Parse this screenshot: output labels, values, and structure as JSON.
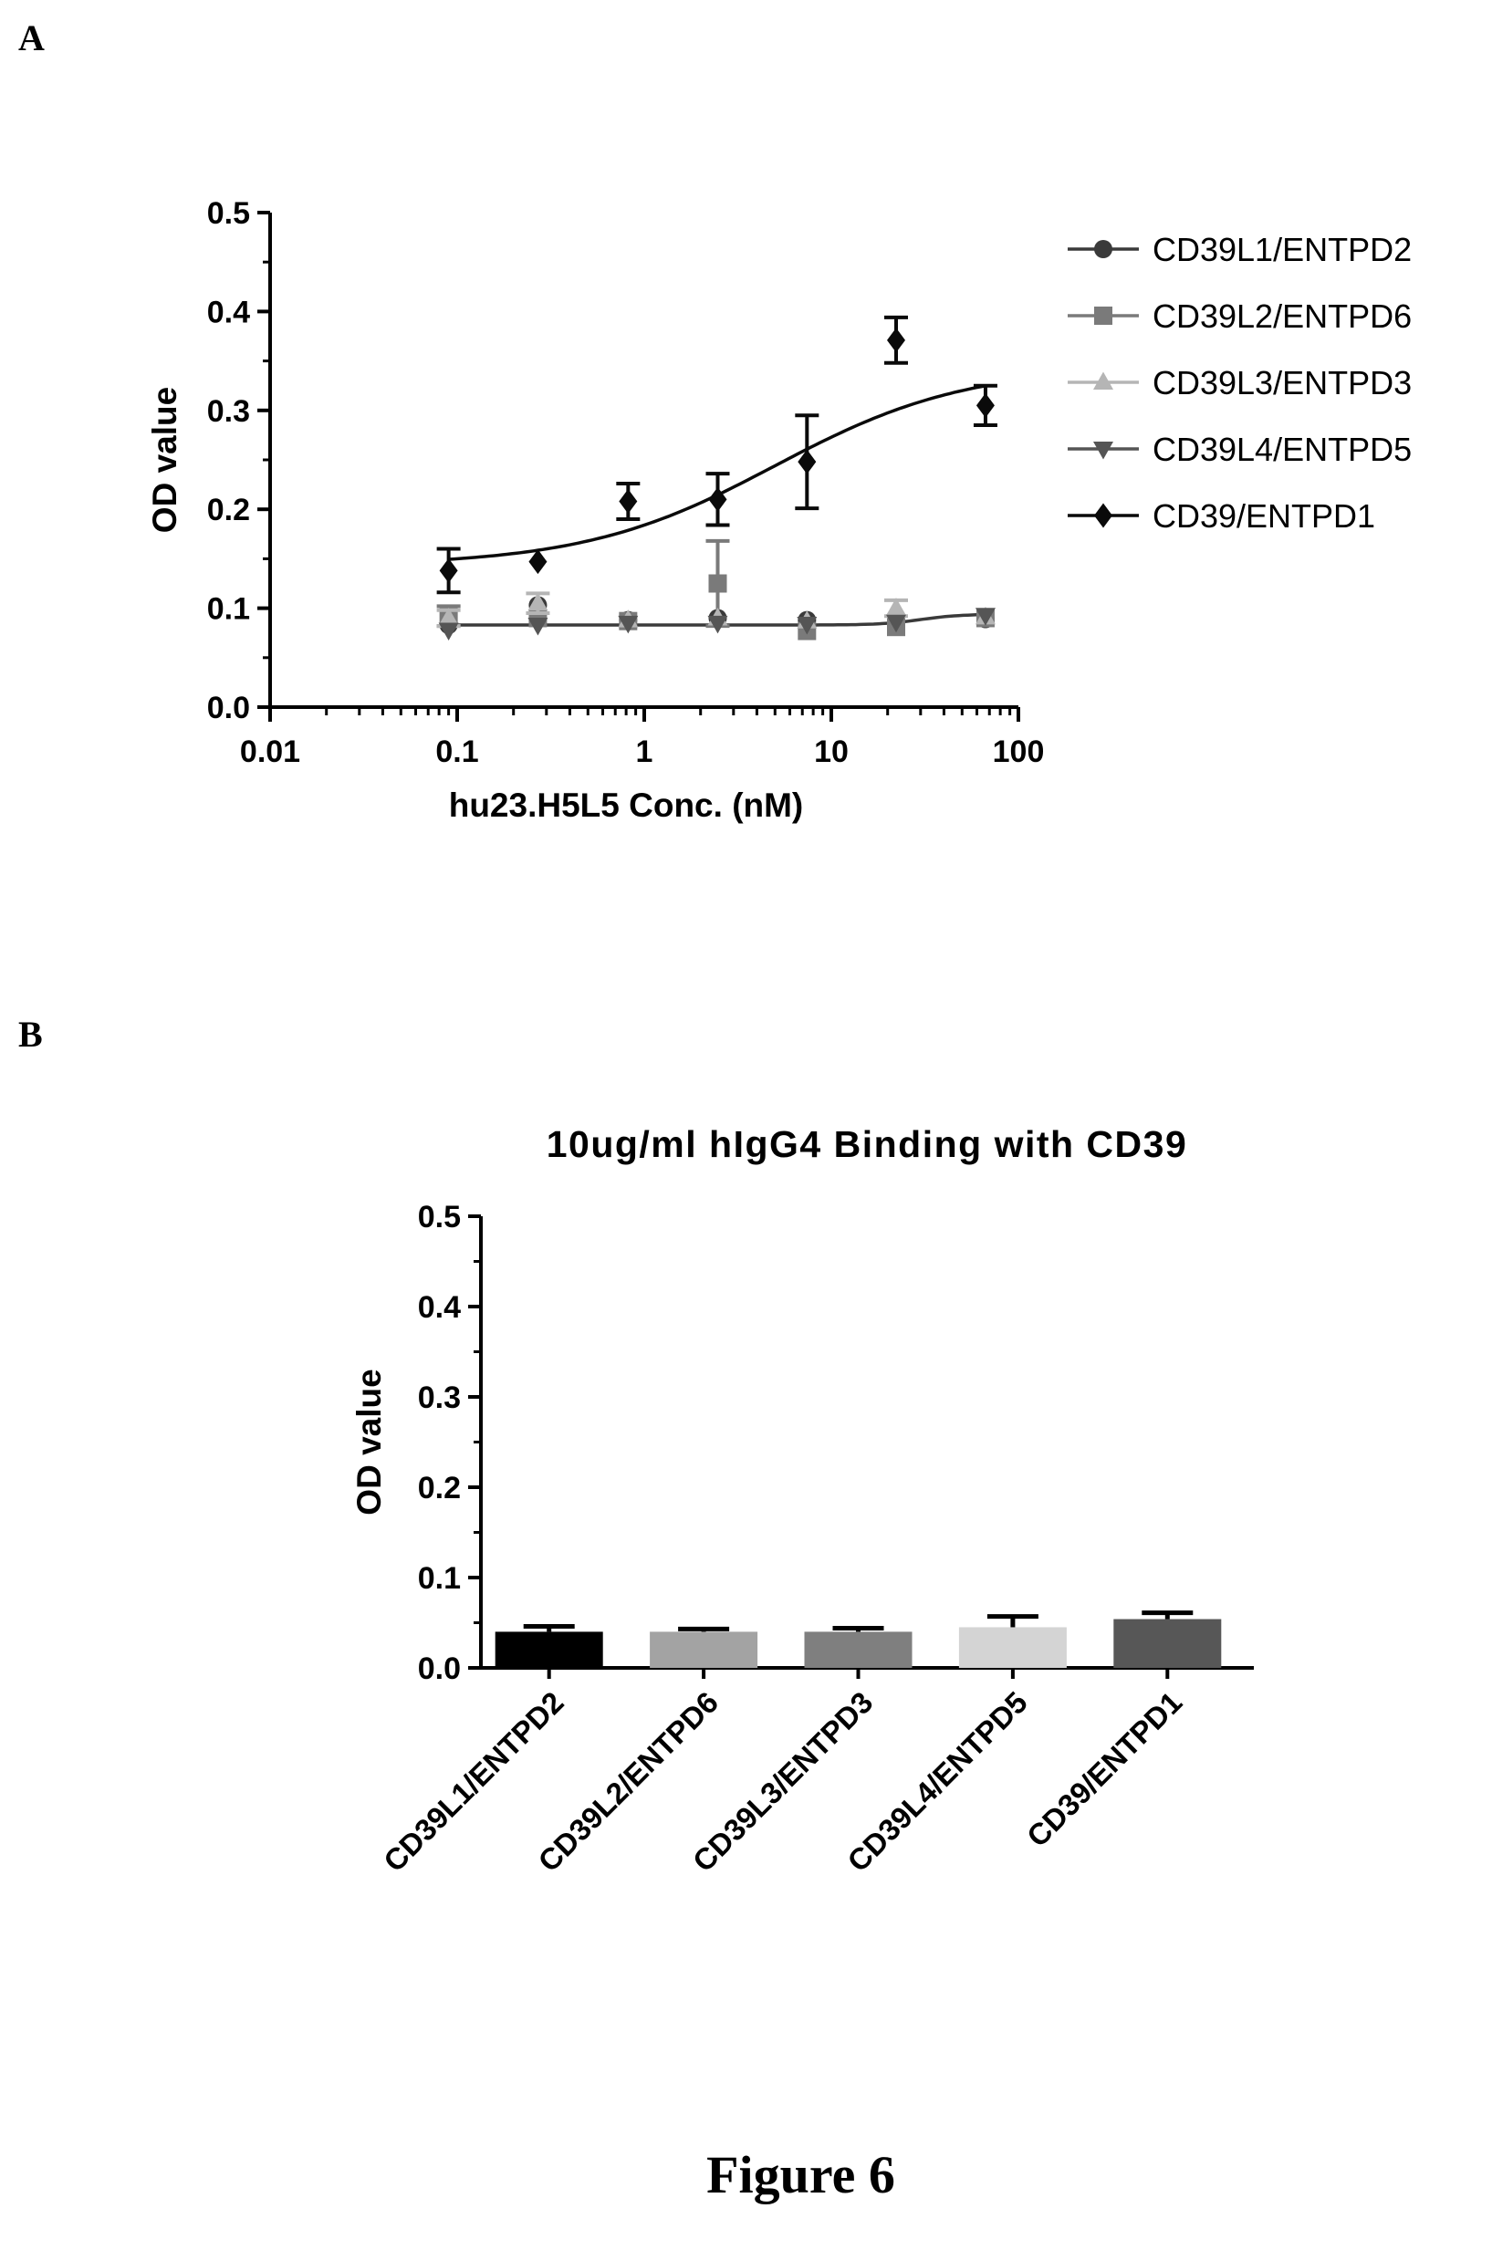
{
  "panels": {
    "a": "A",
    "b": "B"
  },
  "figure_caption": "Figure 6",
  "chart_data": [
    {
      "type": "scatter",
      "panel": "A",
      "xlabel": "hu23.H5L5 Conc. (nM)",
      "ylabel": "OD value",
      "xscale": "log",
      "xlim": [
        0.01,
        100
      ],
      "ylim": [
        0,
        0.5
      ],
      "xticks": [
        "0.01",
        "0.1",
        "1",
        "10",
        "100"
      ],
      "yticks": [
        "0.0",
        "0.1",
        "0.2",
        "0.3",
        "0.4",
        "0.5"
      ],
      "legend_position": "right",
      "x": [
        0.09,
        0.27,
        0.82,
        2.47,
        7.41,
        22.2,
        66.7
      ],
      "series": [
        {
          "name": "CD39L1/ENTPD2",
          "marker": "circle",
          "color": "#3a3a3a",
          "values": [
            0.083,
            0.103,
            0.088,
            0.09,
            0.088,
            0.083,
            0.089
          ],
          "errors": [
            0.004,
            0.004,
            0.004,
            0.004,
            0.003,
            0.004,
            0.004
          ]
        },
        {
          "name": "CD39L2/ENTPD6",
          "marker": "square",
          "color": "#7a7a7a",
          "values": [
            0.092,
            0.09,
            0.087,
            0.125,
            0.077,
            0.081,
            0.09
          ],
          "errors": [
            0.01,
            0.004,
            0.004,
            0.043,
            0.004,
            0.004,
            0.004
          ]
        },
        {
          "name": "CD39L3/ENTPD3",
          "marker": "triangle-up",
          "color": "#b5b5b5",
          "values": [
            0.09,
            0.105,
            0.088,
            0.09,
            0.087,
            0.1,
            0.091
          ],
          "errors": [
            0.008,
            0.01,
            0.004,
            0.004,
            0.004,
            0.008,
            0.004
          ]
        },
        {
          "name": "CD39L4/ENTPD5",
          "marker": "triangle-down",
          "color": "#555555",
          "values": [
            0.078,
            0.083,
            0.085,
            0.085,
            0.084,
            0.086,
            0.093
          ],
          "errors": [
            0.004,
            0.004,
            0.004,
            0.004,
            0.004,
            0.004,
            0.004
          ]
        },
        {
          "name": "CD39/ENTPD1",
          "marker": "diamond",
          "color": "#0a0a0a",
          "values": [
            0.138,
            0.147,
            0.208,
            0.21,
            0.248,
            0.371,
            0.305
          ],
          "errors": [
            0.022,
            0.003,
            0.018,
            0.026,
            0.047,
            0.023,
            0.02
          ]
        }
      ],
      "fits": [
        {
          "series": "CD39/ENTPD1",
          "bottom": 0.143,
          "top": 0.345,
          "ec50": 5.0,
          "hill": 0.85
        },
        {
          "series": "CD39L1/ENTPD2",
          "bottom": 0.083,
          "top": 0.094,
          "ec50": 30.0,
          "hill": 4
        }
      ]
    },
    {
      "type": "bar",
      "panel": "B",
      "title": "10ug/ml hIgG4 Binding with CD39",
      "xlabel": "",
      "ylabel": "OD value",
      "ylim": [
        0,
        0.5
      ],
      "yticks": [
        "0.0",
        "0.1",
        "0.2",
        "0.3",
        "0.4",
        "0.5"
      ],
      "categories": [
        "CD39L1/ENTPD2",
        "CD39L2/ENTPD6",
        "CD39L3/ENTPD3",
        "CD39L4/ENTPD5",
        "CD39/ENTPD1"
      ],
      "values": [
        0.04,
        0.04,
        0.04,
        0.045,
        0.054
      ],
      "errors": [
        0.006,
        0.003,
        0.004,
        0.012,
        0.007
      ],
      "colors": [
        "#000000",
        "#a3a3a3",
        "#7f7f7f",
        "#d4d4d4",
        "#575757"
      ]
    }
  ]
}
